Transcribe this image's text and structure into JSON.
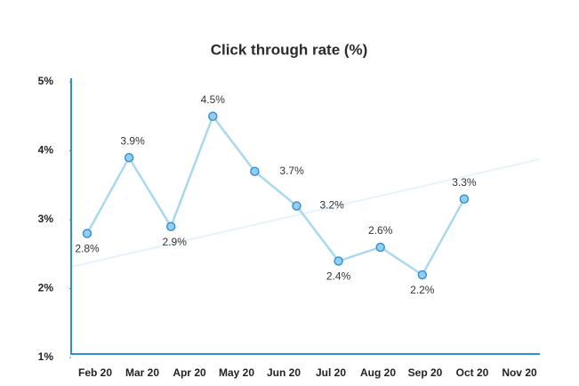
{
  "chart_data": {
    "type": "line",
    "title": "Click through rate (%)",
    "categories": [
      "Feb 20",
      "Mar 20",
      "Apr 20",
      "May 20",
      "Jun 20",
      "Jul 20",
      "Aug 20",
      "Sep 20",
      "Oct 20",
      "Nov 20"
    ],
    "series": [
      {
        "name": "Click through rate",
        "color": "#a9d9ef",
        "values": [
          2.8,
          3.9,
          2.9,
          4.5,
          3.7,
          3.2,
          2.4,
          2.6,
          2.2,
          3.3
        ],
        "value_labels": [
          "2.8%",
          "3.9%",
          "2.9%",
          "4.5%",
          "3.7%",
          "3.2%",
          "2.4%",
          "2.6%",
          "2.2%",
          "3.3%"
        ]
      }
    ],
    "ylim": [
      1,
      5
    ],
    "yticks": [
      {
        "value": 1,
        "label": "1%"
      },
      {
        "value": 2,
        "label": "2%"
      },
      {
        "value": 3,
        "label": "3%"
      },
      {
        "value": 4,
        "label": "4%"
      },
      {
        "value": 5,
        "label": "5%"
      }
    ],
    "grid": false
  }
}
